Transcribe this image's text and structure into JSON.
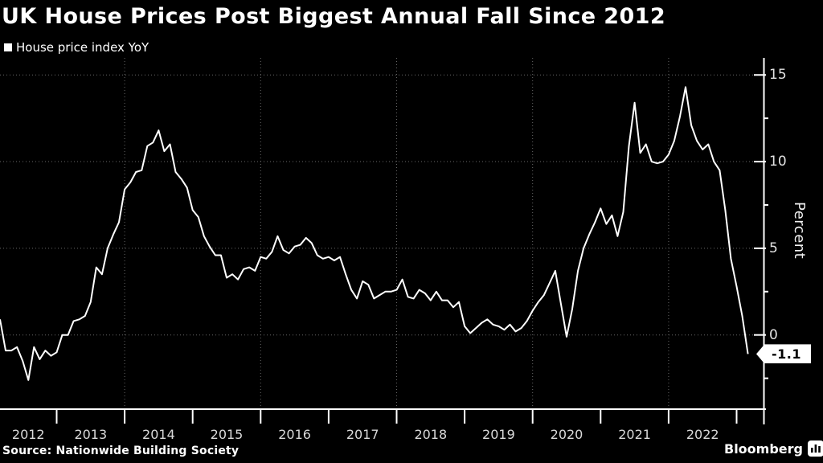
{
  "header": {
    "title": "UK House Prices Post Biggest Annual Fall Since 2012",
    "legend_label": "House price index YoY"
  },
  "chart_data": {
    "type": "line",
    "title": "UK House Prices Post Biggest Annual Fall Since 2012",
    "legend": [
      "House price index YoY"
    ],
    "legend_position": "top-left",
    "xlabel": "",
    "ylabel": "Percent",
    "ylim": [
      -4.3,
      16.1
    ],
    "y_ticks_major": [
      0,
      5,
      10,
      15
    ],
    "y_ticks_minor": [
      -2.5,
      2.5,
      7.5,
      12.5
    ],
    "grid": "dotted",
    "x_frequency": "monthly",
    "x_start": "2012-02",
    "x_end": "2023-02",
    "x_year_labels": [
      "2012",
      "2013",
      "2014",
      "2015",
      "2016",
      "2017",
      "2018",
      "2019",
      "2020",
      "2021",
      "2022"
    ],
    "grid_years": [
      2014,
      2016,
      2018,
      2020,
      2022
    ],
    "last_value": -1.1,
    "last_value_label": "-1.1",
    "series": [
      {
        "name": "House price index YoY",
        "color": "#ffffff",
        "values": [
          0.9,
          -0.9,
          -0.9,
          -0.7,
          -1.5,
          -2.6,
          -0.7,
          -1.4,
          -0.9,
          -1.2,
          -1.0,
          0.0,
          0.0,
          0.8,
          0.9,
          1.1,
          1.9,
          3.9,
          3.5,
          5.0,
          5.8,
          6.5,
          8.4,
          8.8,
          9.4,
          9.5,
          10.9,
          11.1,
          11.8,
          10.6,
          11.0,
          9.4,
          9.0,
          8.5,
          7.2,
          6.8,
          5.7,
          5.1,
          4.6,
          4.6,
          3.3,
          3.5,
          3.2,
          3.8,
          3.9,
          3.7,
          4.5,
          4.4,
          4.8,
          5.7,
          4.9,
          4.7,
          5.1,
          5.2,
          5.6,
          5.3,
          4.6,
          4.4,
          4.5,
          4.3,
          4.5,
          3.5,
          2.6,
          2.1,
          3.1,
          2.9,
          2.1,
          2.3,
          2.5,
          2.5,
          2.6,
          3.2,
          2.2,
          2.1,
          2.6,
          2.4,
          2.0,
          2.5,
          2.0,
          2.0,
          1.6,
          1.9,
          0.5,
          0.1,
          0.4,
          0.7,
          0.9,
          0.6,
          0.5,
          0.3,
          0.6,
          0.2,
          0.4,
          0.8,
          1.4,
          1.9,
          2.3,
          3.0,
          3.7,
          1.8,
          -0.1,
          1.5,
          3.7,
          5.0,
          5.8,
          6.5,
          7.3,
          6.4,
          6.9,
          5.7,
          7.1,
          10.9,
          13.4,
          10.5,
          11.0,
          10.0,
          9.9,
          10.0,
          10.4,
          11.2,
          12.6,
          14.3,
          12.1,
          11.2,
          10.7,
          11.0,
          10.0,
          9.5,
          7.2,
          4.4,
          2.8,
          1.1,
          -1.1
        ]
      }
    ]
  },
  "footer": {
    "source": "Source: Nationwide Building Society",
    "brand": "Bloomberg"
  },
  "colors": {
    "background": "#000000",
    "line": "#ffffff",
    "grid": "#686868",
    "axis": "#ffffff",
    "tick_label": "#d9d9d9",
    "tag_bg": "#ffffff",
    "tag_text": "#000000"
  }
}
